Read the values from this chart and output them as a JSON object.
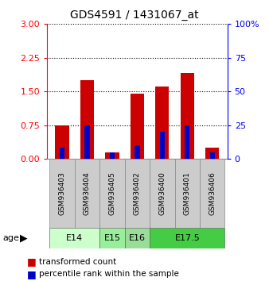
{
  "title": "GDS4591 / 1431067_at",
  "samples": [
    "GSM936403",
    "GSM936404",
    "GSM936405",
    "GSM936402",
    "GSM936400",
    "GSM936401",
    "GSM936406"
  ],
  "transformed_count": [
    0.75,
    1.75,
    0.15,
    1.45,
    1.6,
    1.9,
    0.25
  ],
  "percentile_rank_pct": [
    8,
    25,
    5,
    10,
    20,
    25,
    5
  ],
  "age_groups": [
    {
      "label": "E14",
      "samples": [
        0,
        1
      ],
      "color": "#ccffcc"
    },
    {
      "label": "E15",
      "samples": [
        2
      ],
      "color": "#99ee99"
    },
    {
      "label": "E16",
      "samples": [
        3
      ],
      "color": "#99dd99"
    },
    {
      "label": "E17.5",
      "samples": [
        4,
        5,
        6
      ],
      "color": "#44cc44"
    }
  ],
  "ylim_left": [
    0,
    3
  ],
  "ylim_right": [
    0,
    100
  ],
  "yticks_left": [
    0,
    0.75,
    1.5,
    2.25,
    3
  ],
  "yticks_right": [
    0,
    25,
    50,
    75,
    100
  ],
  "bar_color_red": "#cc0000",
  "bar_color_blue": "#0000cc",
  "red_bar_width": 0.55,
  "blue_bar_width": 0.2,
  "bg_color_label": "#cccccc",
  "age_e14_color": "#ccffcc",
  "age_e15_color": "#99ee99",
  "age_e16_color": "#99dd99",
  "age_e175_color": "#44cc44"
}
